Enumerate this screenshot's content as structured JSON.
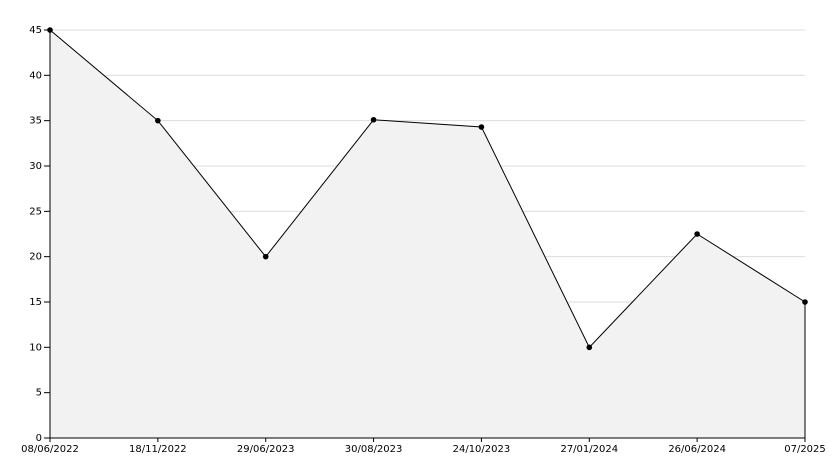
{
  "chart_data": {
    "type": "area",
    "categories": [
      "08/06/2022",
      "18/11/2022",
      "29/06/2023",
      "30/08/2023",
      "24/10/2023",
      "27/01/2024",
      "26/06/2024",
      "07/2025"
    ],
    "values": [
      45,
      35,
      20,
      35.1,
      34.3,
      10,
      22.5,
      15
    ],
    "color": "#000000",
    "fill": "#f2f2f2",
    "ylim": [
      0,
      45
    ],
    "yticks": [
      0,
      5,
      10,
      15,
      20,
      25,
      30,
      35,
      40,
      45
    ],
    "grid": true
  }
}
